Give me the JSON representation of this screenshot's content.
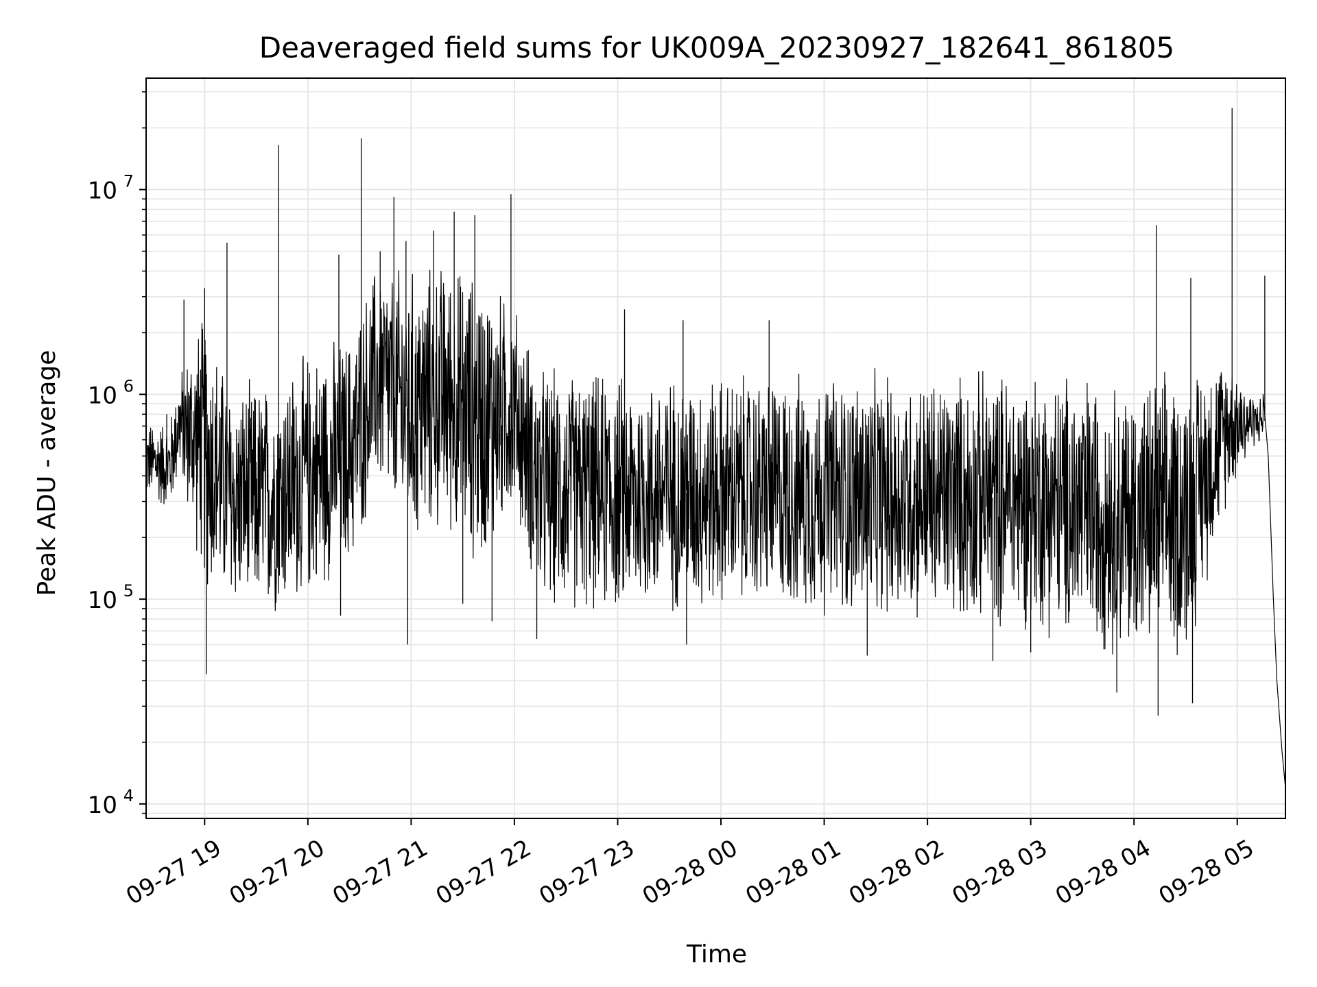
{
  "chart_data": {
    "type": "line",
    "title": "Deaveraged field sums for UK009A_20230927_182641_861805",
    "xlabel": "Time",
    "ylabel": "Peak ADU - average",
    "yscale": "log",
    "grid": true,
    "line_color": "#000000",
    "xlim": [
      "2023-09-27 18:26",
      "2023-09-28 05:28"
    ],
    "ylim": [
      8500,
      35000000
    ],
    "x_ticks": [
      {
        "t": "2023-09-27 19:00",
        "label": "09-27 19"
      },
      {
        "t": "2023-09-27 20:00",
        "label": "09-27 20"
      },
      {
        "t": "2023-09-27 21:00",
        "label": "09-27 21"
      },
      {
        "t": "2023-09-27 22:00",
        "label": "09-27 22"
      },
      {
        "t": "2023-09-27 23:00",
        "label": "09-27 23"
      },
      {
        "t": "2023-09-28 00:00",
        "label": "09-28 00"
      },
      {
        "t": "2023-09-28 01:00",
        "label": "09-28 01"
      },
      {
        "t": "2023-09-28 02:00",
        "label": "09-28 02"
      },
      {
        "t": "2023-09-28 03:00",
        "label": "09-28 03"
      },
      {
        "t": "2023-09-28 04:00",
        "label": "09-28 04"
      },
      {
        "t": "2023-09-28 05:00",
        "label": "09-28 05"
      }
    ],
    "y_ticks": [
      {
        "value": 10000,
        "base": "10",
        "exp": "4"
      },
      {
        "value": 100000,
        "base": "10",
        "exp": "5"
      },
      {
        "value": 1000000,
        "base": "10",
        "exp": "6"
      },
      {
        "value": 10000000,
        "base": "10",
        "exp": "7"
      }
    ],
    "envelope": [
      {
        "t": "2023-09-27 18:26",
        "low": 300000,
        "high": 750000
      },
      {
        "t": "2023-09-27 18:40",
        "low": 250000,
        "high": 800000
      },
      {
        "t": "2023-09-27 18:45",
        "low": 400000,
        "high": 1300000
      },
      {
        "t": "2023-09-27 19:00",
        "low": 100000,
        "high": 3000000
      },
      {
        "t": "2023-09-27 19:15",
        "low": 80000,
        "high": 1200000
      },
      {
        "t": "2023-09-27 19:40",
        "low": 75000,
        "high": 1300000
      },
      {
        "t": "2023-09-27 20:00",
        "low": 90000,
        "high": 1800000
      },
      {
        "t": "2023-09-27 20:25",
        "low": 130000,
        "high": 2200000
      },
      {
        "t": "2023-09-27 20:40",
        "low": 300000,
        "high": 5000000
      },
      {
        "t": "2023-09-27 21:00",
        "low": 150000,
        "high": 4500000
      },
      {
        "t": "2023-09-27 21:20",
        "low": 200000,
        "high": 5000000
      },
      {
        "t": "2023-09-27 21:40",
        "low": 120000,
        "high": 4500000
      },
      {
        "t": "2023-09-27 22:00",
        "low": 250000,
        "high": 3000000
      },
      {
        "t": "2023-09-27 22:15",
        "low": 80000,
        "high": 1500000
      },
      {
        "t": "2023-09-27 23:00",
        "low": 75000,
        "high": 1400000
      },
      {
        "t": "2023-09-28 00:00",
        "low": 80000,
        "high": 1400000
      },
      {
        "t": "2023-09-28 01:00",
        "low": 75000,
        "high": 1400000
      },
      {
        "t": "2023-09-28 02:00",
        "low": 70000,
        "high": 1400000
      },
      {
        "t": "2023-09-28 03:00",
        "low": 65000,
        "high": 1500000
      },
      {
        "t": "2023-09-28 03:40",
        "low": 50000,
        "high": 1400000
      },
      {
        "t": "2023-09-28 04:00",
        "low": 45000,
        "high": 1300000
      },
      {
        "t": "2023-09-28 04:30",
        "low": 45000,
        "high": 1500000
      },
      {
        "t": "2023-09-28 04:55",
        "low": 300000,
        "high": 1700000
      },
      {
        "t": "2023-09-28 05:10",
        "low": 550000,
        "high": 1000000
      }
    ],
    "spikes": [
      {
        "t": "2023-09-27 18:38",
        "value": 800000
      },
      {
        "t": "2023-09-27 18:48",
        "value": 2900000
      },
      {
        "t": "2023-09-27 19:00",
        "value": 3300000
      },
      {
        "t": "2023-09-27 19:01",
        "value": 43000
      },
      {
        "t": "2023-09-27 19:13",
        "value": 5500000
      },
      {
        "t": "2023-09-27 19:43",
        "value": 16500000
      },
      {
        "t": "2023-09-27 20:18",
        "value": 4800000
      },
      {
        "t": "2023-09-27 20:19",
        "value": 83000
      },
      {
        "t": "2023-09-27 20:31",
        "value": 17800000
      },
      {
        "t": "2023-09-27 20:42",
        "value": 5000000
      },
      {
        "t": "2023-09-27 20:50",
        "value": 9200000
      },
      {
        "t": "2023-09-27 20:57",
        "value": 5600000
      },
      {
        "t": "2023-09-27 20:58",
        "value": 60000
      },
      {
        "t": "2023-09-27 21:13",
        "value": 6300000
      },
      {
        "t": "2023-09-27 21:25",
        "value": 7800000
      },
      {
        "t": "2023-09-27 21:30",
        "value": 95000
      },
      {
        "t": "2023-09-27 21:37",
        "value": 7500000
      },
      {
        "t": "2023-09-27 21:47",
        "value": 78000
      },
      {
        "t": "2023-09-27 21:58",
        "value": 9500000
      },
      {
        "t": "2023-09-27 22:13",
        "value": 64000
      },
      {
        "t": "2023-09-27 23:04",
        "value": 2600000
      },
      {
        "t": "2023-09-27 23:38",
        "value": 2300000
      },
      {
        "t": "2023-09-27 23:40",
        "value": 60000
      },
      {
        "t": "2023-09-28 00:28",
        "value": 2300000
      },
      {
        "t": "2023-09-28 01:25",
        "value": 53000
      },
      {
        "t": "2023-09-28 02:38",
        "value": 50000
      },
      {
        "t": "2023-09-28 03:00",
        "value": 55000
      },
      {
        "t": "2023-09-28 03:50",
        "value": 35000
      },
      {
        "t": "2023-09-28 04:13",
        "value": 6700000
      },
      {
        "t": "2023-09-28 04:14",
        "value": 27000
      },
      {
        "t": "2023-09-28 04:33",
        "value": 3700000
      },
      {
        "t": "2023-09-28 04:34",
        "value": 31000
      },
      {
        "t": "2023-09-28 04:57",
        "value": 25000000
      },
      {
        "t": "2023-09-28 05:16",
        "value": 3800000
      }
    ],
    "tail": [
      {
        "t": "2023-09-28 05:15",
        "value": 1000000
      },
      {
        "t": "2023-09-28 05:18",
        "value": 500000
      },
      {
        "t": "2023-09-28 05:21",
        "value": 100000
      },
      {
        "t": "2023-09-28 05:23",
        "value": 40000
      },
      {
        "t": "2023-09-28 05:26",
        "value": 18000
      },
      {
        "t": "2023-09-28 05:28",
        "value": 12000
      }
    ]
  }
}
